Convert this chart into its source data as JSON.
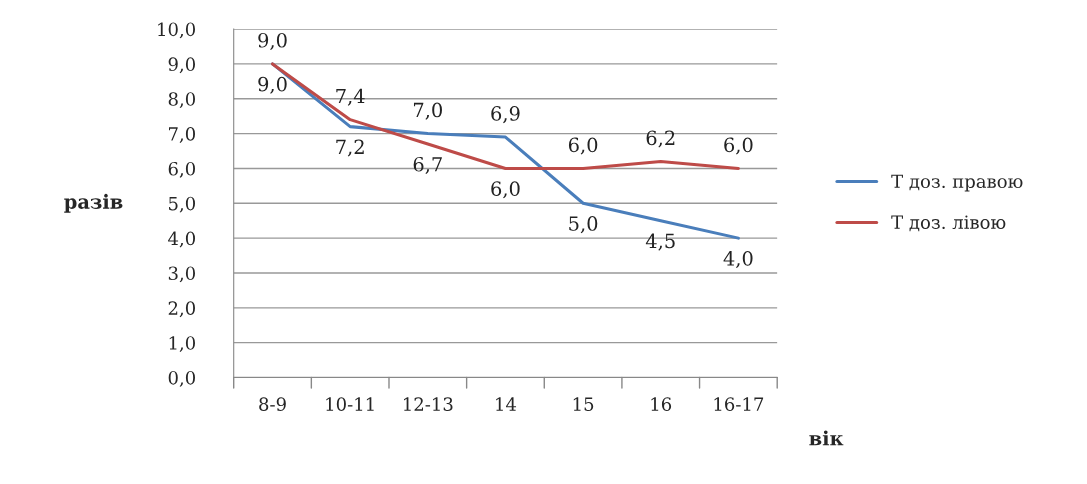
{
  "chart_data": {
    "type": "line",
    "xlabel": "вік",
    "ylabel": "разів",
    "categories": [
      "8-9",
      "10-11",
      "12-13",
      "14",
      "15",
      "16",
      "16-17"
    ],
    "series": [
      {
        "name": "Т доз. правою",
        "color": "#4a7ebb",
        "values": [
          9.0,
          7.2,
          7.0,
          6.9,
          5.0,
          4.5,
          4.0
        ],
        "value_labels": [
          "9,0",
          "7,2",
          "7,0",
          "6,9",
          "5,0",
          "4,5",
          "4,0"
        ]
      },
      {
        "name": "Т доз. лівою",
        "color": "#be4b48",
        "values": [
          9.0,
          7.4,
          6.7,
          6.0,
          6.0,
          6.2,
          6.0
        ],
        "value_labels": [
          "9,0",
          "7,4",
          "6,7",
          "6,0",
          "6,0",
          "6,2",
          "6,0"
        ]
      }
    ],
    "ylim": [
      0,
      10
    ],
    "yticks": [
      {
        "value": 0,
        "label": "0,0"
      },
      {
        "value": 1,
        "label": "1,0"
      },
      {
        "value": 2,
        "label": "2,0"
      },
      {
        "value": 3,
        "label": "3,0"
      },
      {
        "value": 4,
        "label": "4,0"
      },
      {
        "value": 5,
        "label": "5,0"
      },
      {
        "value": 6,
        "label": "6,0"
      },
      {
        "value": 7,
        "label": "7,0"
      },
      {
        "value": 8,
        "label": "8,0"
      },
      {
        "value": 9,
        "label": "9,0"
      },
      {
        "value": 10,
        "label": "10,0"
      }
    ],
    "grid": "y",
    "legend": "right",
    "marker": "none",
    "line_style": "solid"
  }
}
